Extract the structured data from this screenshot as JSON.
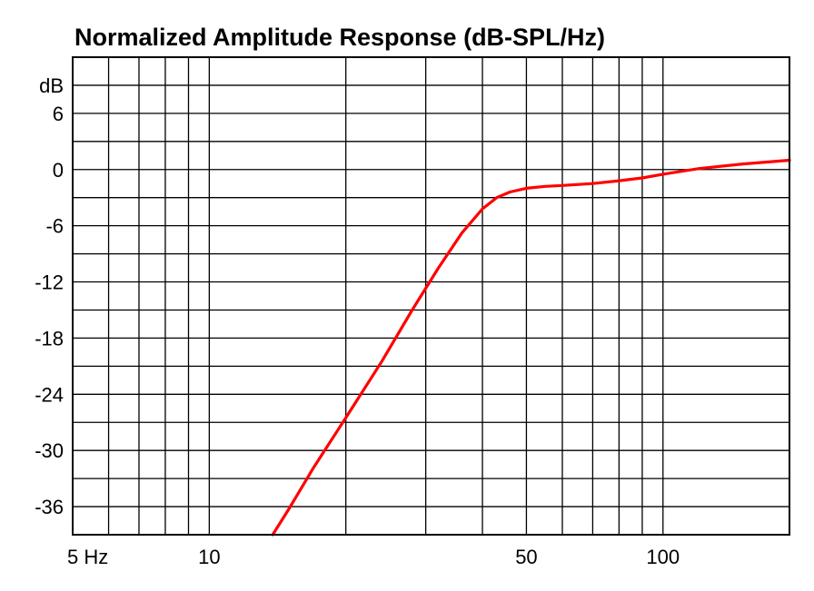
{
  "chart_data": {
    "type": "line",
    "title": "Normalized Amplitude Response (dB-SPL/Hz)",
    "xscale": "log",
    "xlim": [
      5,
      190
    ],
    "ylim": [
      -39,
      12
    ],
    "x_ticks": [
      {
        "value": 5,
        "label": "5 Hz"
      },
      {
        "value": 10,
        "label": "10"
      },
      {
        "value": 50,
        "label": "50"
      },
      {
        "value": 100,
        "label": "100"
      }
    ],
    "y_ticks": [
      {
        "value": 9,
        "label": "dB"
      },
      {
        "value": 6,
        "label": "6"
      },
      {
        "value": 0,
        "label": "0"
      },
      {
        "value": -6,
        "label": "-6"
      },
      {
        "value": -12,
        "label": "-12"
      },
      {
        "value": -18,
        "label": "-18"
      },
      {
        "value": -24,
        "label": "-24"
      },
      {
        "value": -30,
        "label": "-30"
      },
      {
        "value": -36,
        "label": "-36"
      }
    ],
    "x_gridlines": [
      6,
      7,
      8,
      9,
      10,
      20,
      30,
      40,
      50,
      60,
      70,
      80,
      90,
      100
    ],
    "y_gridlines": [
      9,
      6,
      3,
      0,
      -3,
      -6,
      -9,
      -12,
      -15,
      -18,
      -21,
      -24,
      -27,
      -30,
      -33,
      -36
    ],
    "grid": true,
    "legend": "none",
    "series": [
      {
        "color": "#ff0000",
        "x": [
          13.8,
          15,
          17,
          20,
          24,
          28,
          32,
          36,
          40,
          43,
          46,
          50,
          55,
          60,
          70,
          80,
          90,
          100,
          120,
          150,
          190
        ],
        "y": [
          -39,
          -36.2,
          -31.8,
          -26.5,
          -20.5,
          -15,
          -10.5,
          -6.8,
          -4.2,
          -3.0,
          -2.4,
          -2.0,
          -1.8,
          -1.7,
          -1.5,
          -1.2,
          -0.9,
          -0.5,
          0.1,
          0.6,
          1.0
        ]
      }
    ]
  }
}
